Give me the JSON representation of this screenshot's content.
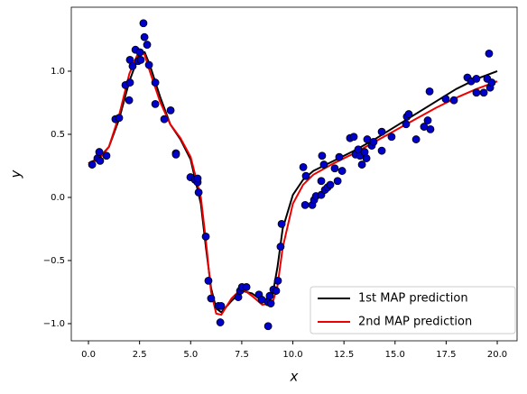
{
  "chart_data": {
    "type": "scatter",
    "xlabel": "x",
    "ylabel": "y",
    "xlim": [
      -0.84,
      20.97
    ],
    "ylim": [
      -1.136,
      1.507
    ],
    "xticks": [
      {
        "value": 0,
        "label": "0.0"
      },
      {
        "value": 2.5,
        "label": "2.5"
      },
      {
        "value": 5,
        "label": "5.0"
      },
      {
        "value": 7.5,
        "label": "7.5"
      },
      {
        "value": 10,
        "label": "10.0"
      },
      {
        "value": 12.5,
        "label": "12.5"
      },
      {
        "value": 15,
        "label": "15.0"
      },
      {
        "value": 17.5,
        "label": "17.5"
      },
      {
        "value": 20,
        "label": "20.0"
      }
    ],
    "yticks": [
      {
        "value": -1,
        "label": "−1.0"
      },
      {
        "value": -0.5,
        "label": "−0.5"
      },
      {
        "value": 0,
        "label": "0.0"
      },
      {
        "value": 0.5,
        "label": "0.5"
      },
      {
        "value": 1,
        "label": "1.0"
      }
    ],
    "legend": "lower right",
    "points": {
      "color": "#0000cc",
      "edgecolor": "#000000",
      "x": [
        0.18,
        0.44,
        0.53,
        0.57,
        0.88,
        1.32,
        1.5,
        1.81,
        1.99,
        2.03,
        2.03,
        2.16,
        2.3,
        2.43,
        2.52,
        2.56,
        2.69,
        2.74,
        2.87,
        2.96,
        3.27,
        3.27,
        3.71,
        4.02,
        4.28,
        4.28,
        4.99,
        5.21,
        5.34,
        5.34,
        5.39,
        5.74,
        5.87,
        6.0,
        6.36,
        6.45,
        6.49,
        7.33,
        7.42,
        7.51,
        7.73,
        8.34,
        8.48,
        8.79,
        8.79,
        8.87,
        8.92,
        9.05,
        9.18,
        9.27,
        9.4,
        9.45,
        10.51,
        10.6,
        10.64,
        10.95,
        11.04,
        11.13,
        11.39,
        11.39,
        11.43,
        11.52,
        11.57,
        11.7,
        11.83,
        12.05,
        12.19,
        12.27,
        12.41,
        12.8,
        12.98,
        13.07,
        13.2,
        13.29,
        13.38,
        13.51,
        13.6,
        13.64,
        13.86,
        13.95,
        14.35,
        14.35,
        14.83,
        15.54,
        15.58,
        15.67,
        16.03,
        16.42,
        16.6,
        16.69,
        16.73,
        17.48,
        17.88,
        18.54,
        18.72,
        18.98,
        18.98,
        19.34,
        19.51,
        19.6,
        19.65,
        19.73
      ],
      "values": [
        0.26,
        0.31,
        0.36,
        0.29,
        0.33,
        0.62,
        0.63,
        0.89,
        0.77,
        0.91,
        1.09,
        1.04,
        1.17,
        1.08,
        1.15,
        1.09,
        1.38,
        1.27,
        1.21,
        1.05,
        0.91,
        0.74,
        0.62,
        0.69,
        0.35,
        0.34,
        0.16,
        0.14,
        0.12,
        0.15,
        0.04,
        -0.31,
        -0.66,
        -0.8,
        -0.86,
        -0.99,
        -0.86,
        -0.79,
        -0.74,
        -0.71,
        -0.71,
        -0.77,
        -0.81,
        -0.83,
        -1.02,
        -0.78,
        -0.84,
        -0.73,
        -0.74,
        -0.66,
        -0.39,
        -0.21,
        0.24,
        -0.06,
        0.17,
        -0.06,
        -0.02,
        0.01,
        0.13,
        0.02,
        0.33,
        0.26,
        0.06,
        0.08,
        0.1,
        0.23,
        0.13,
        0.32,
        0.21,
        0.47,
        0.48,
        0.34,
        0.38,
        0.33,
        0.26,
        0.36,
        0.31,
        0.46,
        0.41,
        0.44,
        0.52,
        0.37,
        0.48,
        0.58,
        0.64,
        0.66,
        0.46,
        0.56,
        0.61,
        0.84,
        0.54,
        0.78,
        0.77,
        0.95,
        0.92,
        0.94,
        0.83,
        0.83,
        0.94,
        1.14,
        0.87,
        0.91
      ]
    },
    "series": [
      {
        "name": "1st MAP prediction",
        "color": "#000000",
        "x": [
          0,
          0.5,
          1,
          1.5,
          2,
          2.5,
          2.75,
          3,
          3.5,
          4,
          4.5,
          5,
          5.5,
          5.75,
          6,
          6.25,
          6.5,
          7,
          7.5,
          8,
          8.5,
          9,
          9.25,
          9.5,
          10,
          10.5,
          11,
          12,
          13,
          14,
          15,
          16,
          17,
          18,
          19,
          20
        ],
        "values": [
          0.27,
          0.31,
          0.4,
          0.62,
          0.92,
          1.14,
          1.15,
          1.05,
          0.8,
          0.58,
          0.46,
          0.3,
          -0.05,
          -0.4,
          -0.72,
          -0.88,
          -0.91,
          -0.82,
          -0.74,
          -0.76,
          -0.82,
          -0.78,
          -0.55,
          -0.25,
          0.02,
          0.14,
          0.21,
          0.29,
          0.37,
          0.46,
          0.56,
          0.66,
          0.76,
          0.86,
          0.94,
          1.0
        ]
      },
      {
        "name": "2nd MAP prediction",
        "color": "#ee0000",
        "x": [
          0,
          0.5,
          1,
          1.5,
          2,
          2.5,
          2.75,
          3,
          3.5,
          4,
          4.5,
          5,
          5.5,
          5.75,
          6,
          6.25,
          6.5,
          7,
          7.5,
          8,
          8.5,
          9,
          9.25,
          9.5,
          10,
          10.5,
          11,
          12,
          13,
          14,
          15,
          16,
          17,
          18,
          19,
          20
        ],
        "values": [
          0.27,
          0.3,
          0.4,
          0.65,
          0.98,
          1.17,
          1.13,
          1.0,
          0.76,
          0.58,
          0.47,
          0.32,
          0.0,
          -0.35,
          -0.75,
          -0.92,
          -0.93,
          -0.8,
          -0.72,
          -0.78,
          -0.85,
          -0.84,
          -0.7,
          -0.4,
          -0.05,
          0.1,
          0.18,
          0.27,
          0.35,
          0.44,
          0.53,
          0.62,
          0.71,
          0.79,
          0.86,
          0.92
        ]
      }
    ]
  }
}
